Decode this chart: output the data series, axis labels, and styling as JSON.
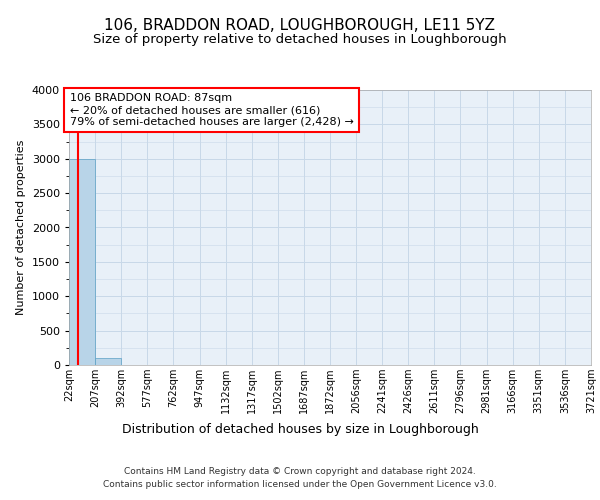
{
  "title": "106, BRADDON ROAD, LOUGHBOROUGH, LE11 5YZ",
  "subtitle": "Size of property relative to detached houses in Loughborough",
  "xlabel": "Distribution of detached houses by size in Loughborough",
  "ylabel": "Number of detached properties",
  "footer_line1": "Contains HM Land Registry data © Crown copyright and database right 2024.",
  "footer_line2": "Contains public sector information licensed under the Open Government Licence v3.0.",
  "bar_edges": [
    22,
    207,
    392,
    577,
    762,
    947,
    1132,
    1317,
    1502,
    1687,
    1872,
    2056,
    2241,
    2426,
    2611,
    2796,
    2981,
    3166,
    3351,
    3536,
    3721
  ],
  "bar_heights": [
    3000,
    100,
    0,
    0,
    0,
    0,
    0,
    0,
    0,
    0,
    0,
    0,
    0,
    0,
    0,
    0,
    0,
    0,
    0,
    0
  ],
  "bar_color": "#b8d4e8",
  "bar_edge_color": "#5a9fc4",
  "grid_color": "#c8d8e8",
  "background_color": "#e8f0f8",
  "ylim": [
    0,
    4000
  ],
  "yticks": [
    0,
    500,
    1000,
    1500,
    2000,
    2500,
    3000,
    3500,
    4000
  ],
  "property_size": 87,
  "annotation_text_line1": "106 BRADDON ROAD: 87sqm",
  "annotation_text_line2": "← 20% of detached houses are smaller (616)",
  "annotation_text_line3": "79% of semi-detached houses are larger (2,428) →",
  "annotation_box_color": "white",
  "annotation_box_edge_color": "red",
  "vline_color": "red",
  "title_fontsize": 11,
  "subtitle_fontsize": 9.5,
  "tick_label_fontsize": 7,
  "ylabel_fontsize": 8,
  "xlabel_fontsize": 9,
  "annotation_fontsize": 8,
  "footer_fontsize": 6.5
}
